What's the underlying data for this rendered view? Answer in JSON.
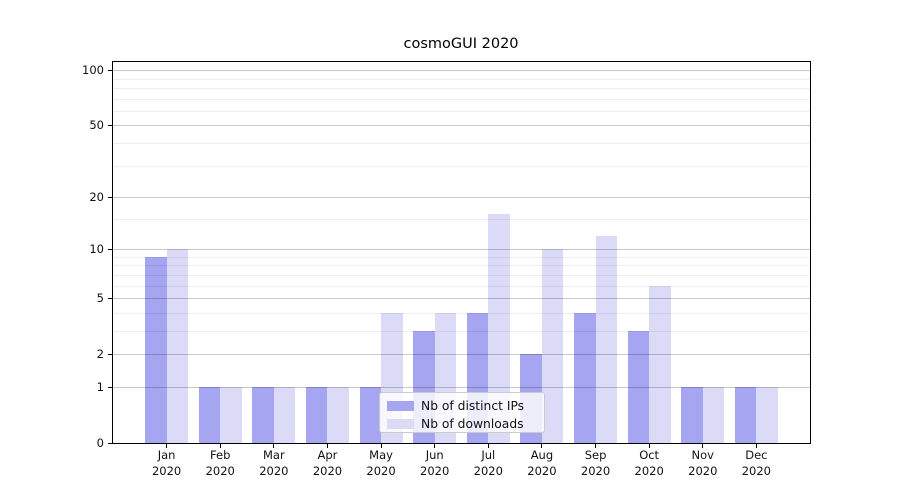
{
  "window": {
    "background": "#ffffff"
  },
  "chart_data": {
    "type": "bar",
    "title": "cosmoGUI 2020",
    "categories": [
      "Jan",
      "Feb",
      "Mar",
      "Apr",
      "May",
      "Jun",
      "Jul",
      "Aug",
      "Sep",
      "Oct",
      "Nov",
      "Dec"
    ],
    "category_year_line": "2020",
    "series": [
      {
        "name": "Nb of distinct IPs",
        "color": "#a5a5f1",
        "values": [
          9,
          1,
          1,
          1,
          1,
          3,
          4,
          2,
          4,
          3,
          1,
          1
        ]
      },
      {
        "name": "Nb of downloads",
        "color": "#dbdbf8",
        "values": [
          10,
          1,
          1,
          1,
          4,
          4,
          16,
          10,
          12,
          6,
          1,
          1
        ]
      }
    ],
    "xlabel": "",
    "ylabel": "",
    "yscale": "log1p",
    "ylim": [
      0,
      110.6
    ],
    "yticks": [
      0,
      1,
      2,
      5,
      10,
      20,
      50,
      100
    ],
    "yticks_minor": [
      3,
      4,
      6,
      7,
      8,
      9,
      15,
      30,
      40,
      60,
      70,
      80,
      90
    ],
    "grid": true,
    "legend_position": "lower-center",
    "axis_color": "#000000",
    "grid_major_color": "rgba(0,0,0,0.21)",
    "grid_minor_color": "rgba(0,0,0,0.065)",
    "text_color": "#111111"
  }
}
